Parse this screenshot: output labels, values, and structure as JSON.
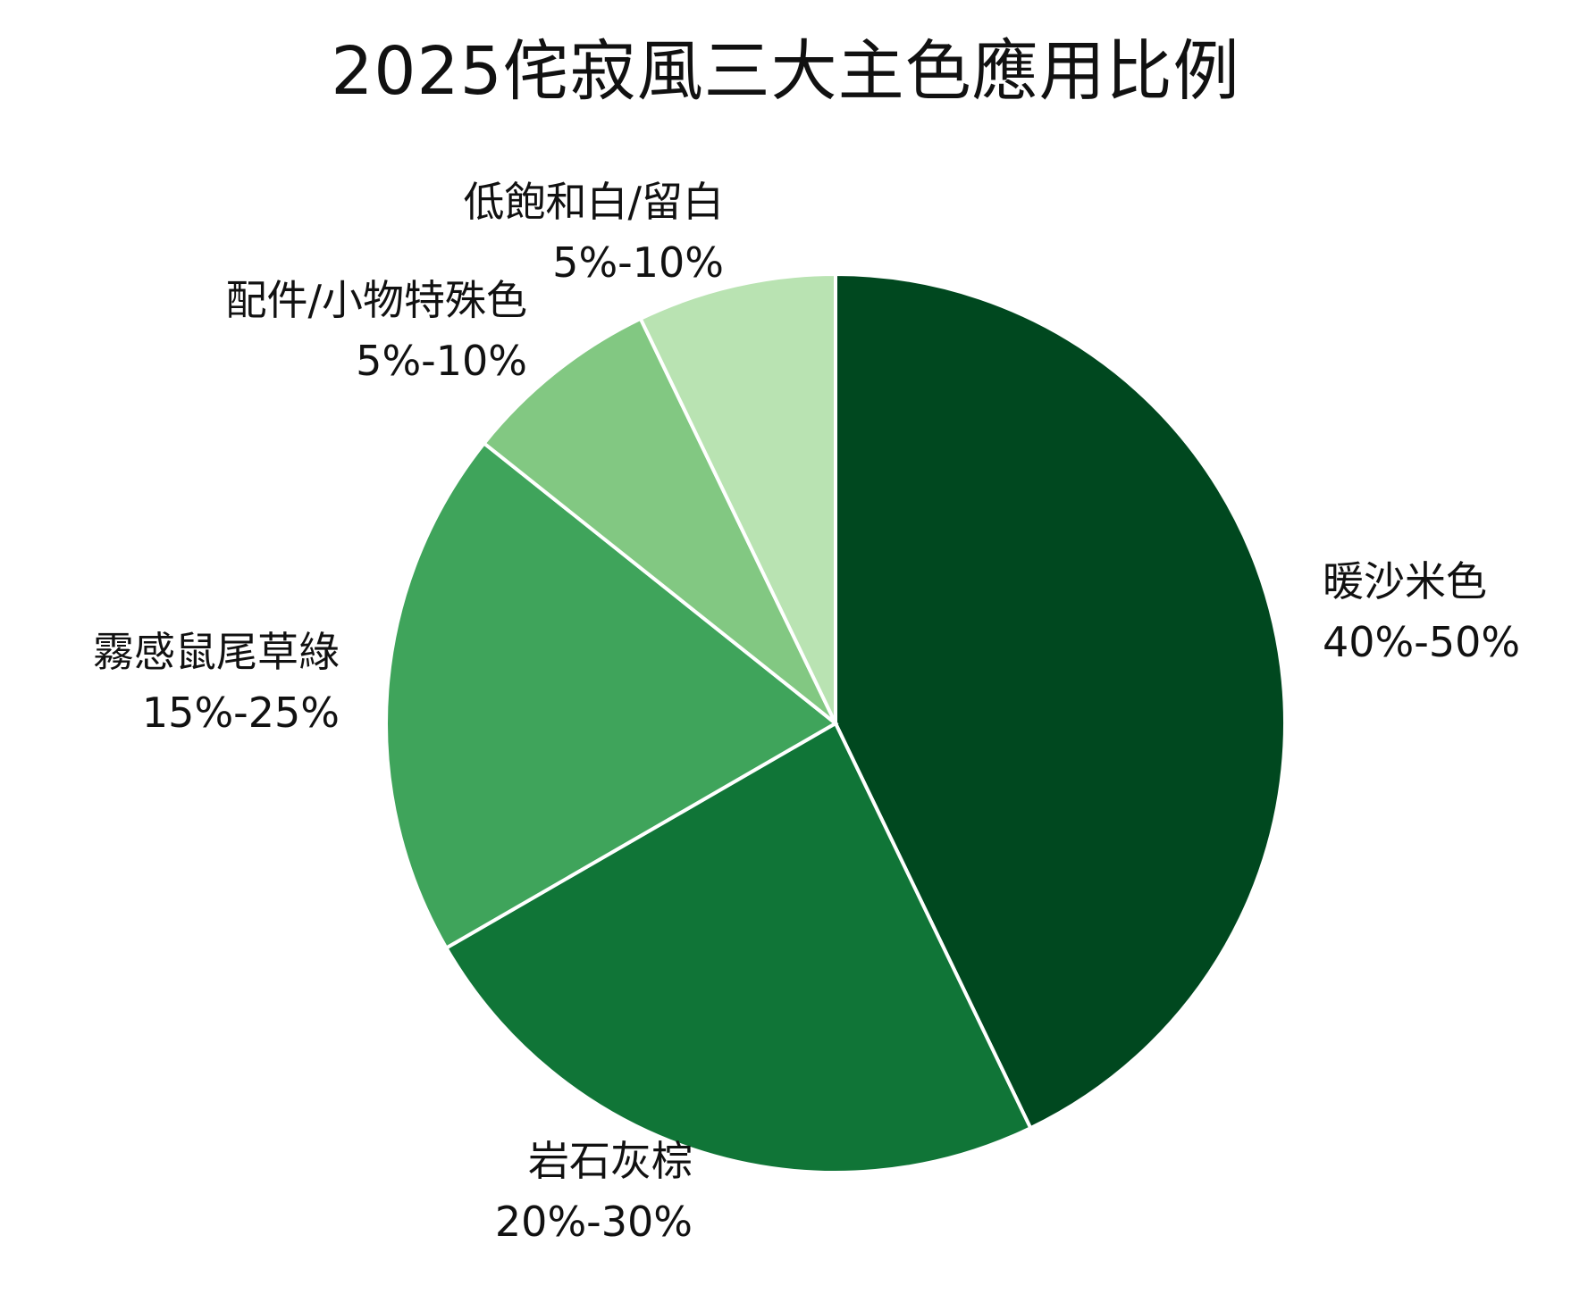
{
  "chart_data": {
    "type": "pie",
    "title": "2025侘寂風三大主色應用比例",
    "slices": [
      {
        "name": "暖沙米色",
        "range": "40%-50%",
        "value": 45,
        "color": "#00481f"
      },
      {
        "name": "岩石灰棕",
        "range": "20%-30%",
        "value": 25,
        "color": "#107537"
      },
      {
        "name": "霧感鼠尾草綠",
        "range": "15%-25%",
        "value": 20,
        "color": "#3fa45b"
      },
      {
        "name": "配件/小物特殊色",
        "range": "5%-10%",
        "value": 7.5,
        "color": "#82c882"
      },
      {
        "name": "低飽和白/留白",
        "range": "5%-10%",
        "value": 7.5,
        "color": "#b9e3b2"
      }
    ],
    "start_angle": "12 o'clock",
    "direction": "clockwise",
    "legend": "none"
  }
}
